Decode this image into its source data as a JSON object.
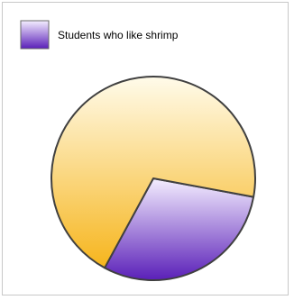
{
  "chart_data": {
    "type": "pie",
    "legend": [
      "Students who like shrimp"
    ],
    "legend_position": "top-left",
    "slices": [
      {
        "label": "Students who like shrimp",
        "value": 30
      },
      {
        "label": "",
        "value": 70
      }
    ],
    "colors": {
      "shrimp_light": "#f4eeff",
      "shrimp_dark": "#5a1fb8",
      "other_light": "#fffbea",
      "other_dark": "#f6b51d",
      "outline": "#404040"
    }
  }
}
